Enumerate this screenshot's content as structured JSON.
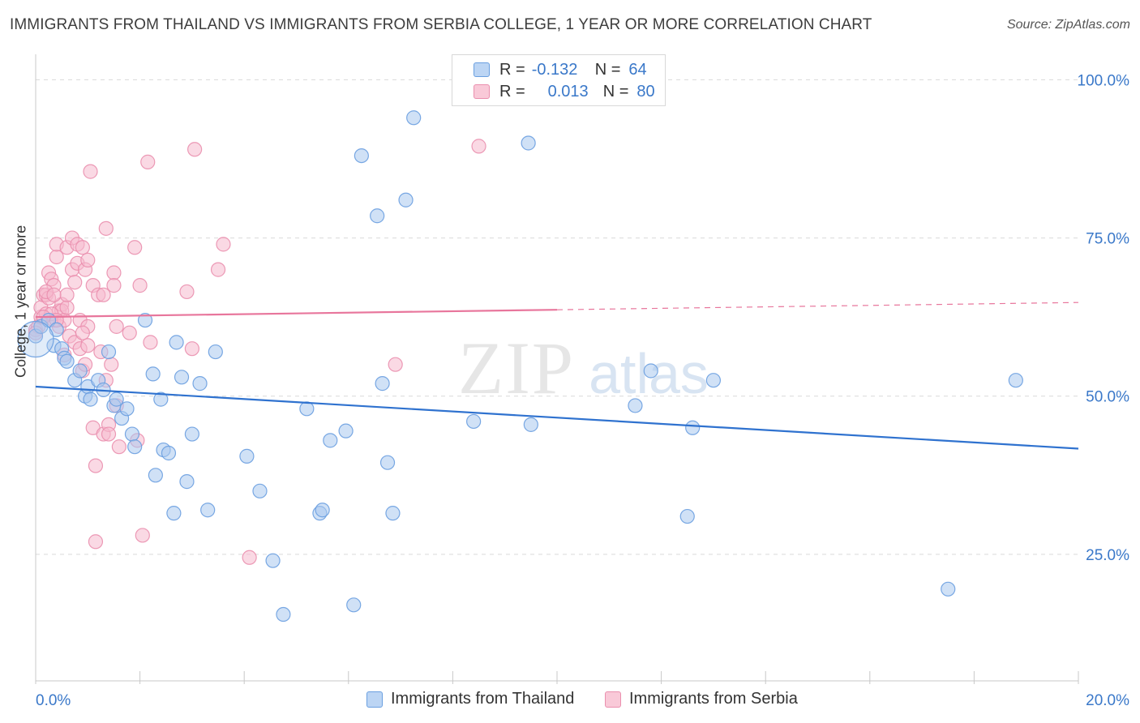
{
  "header": {
    "title": "IMMIGRANTS FROM THAILAND VS IMMIGRANTS FROM SERBIA COLLEGE, 1 YEAR OR MORE CORRELATION CHART",
    "source": "Source: ZipAtlas.com"
  },
  "legend": {
    "thailand": {
      "r_label": "R =",
      "r_value": "-0.132",
      "n_label": "N =",
      "n_value": "64"
    },
    "serbia": {
      "r_label": "R =",
      "r_value": "0.013",
      "n_label": "N =",
      "n_value": "80"
    }
  },
  "watermark": {
    "zip": "ZIP",
    "atlas": "atlas"
  },
  "colors": {
    "thailand_fill": "#a9c8ef",
    "thailand_stroke": "#6a9fe0",
    "thailand_line": "#2f72cf",
    "serbia_fill": "#f6b9cd",
    "serbia_stroke": "#ea8fae",
    "serbia_line": "#e8769c",
    "tick_label": "#3a78c9",
    "grid": "#d9d9d9"
  },
  "chart_data": {
    "type": "scatter",
    "title": "IMMIGRANTS FROM THAILAND VS IMMIGRANTS FROM SERBIA COLLEGE, 1 YEAR OR MORE CORRELATION CHART",
    "xlabel": "",
    "ylabel": "College, 1 year or more",
    "xlim": [
      0,
      20
    ],
    "ylim": [
      5,
      103
    ],
    "x_tick_labels": [
      "0.0%",
      "20.0%"
    ],
    "y_ticks": [
      25,
      50,
      75,
      100
    ],
    "y_tick_labels": [
      "25.0%",
      "50.0%",
      "75.0%",
      "100.0%"
    ],
    "series": [
      {
        "name": "Immigrants from Thailand",
        "trend": {
          "x": [
            0,
            20
          ],
          "y": [
            51.5,
            41.7
          ],
          "solid_until": 20
        },
        "points": [
          [
            0.0,
            59.5
          ],
          [
            0.1,
            61.0
          ],
          [
            0.25,
            62.0
          ],
          [
            0.35,
            58.0
          ],
          [
            0.4,
            60.5
          ],
          [
            0.5,
            57.5
          ],
          [
            0.55,
            56.0
          ],
          [
            0.6,
            55.5
          ],
          [
            0.75,
            52.5
          ],
          [
            0.85,
            54.0
          ],
          [
            0.95,
            50.0
          ],
          [
            1.0,
            51.5
          ],
          [
            1.05,
            49.5
          ],
          [
            1.2,
            52.5
          ],
          [
            1.3,
            51.0
          ],
          [
            1.4,
            57.0
          ],
          [
            1.5,
            48.5
          ],
          [
            1.55,
            49.5
          ],
          [
            1.65,
            46.5
          ],
          [
            1.75,
            48.0
          ],
          [
            1.85,
            44.0
          ],
          [
            1.9,
            42.0
          ],
          [
            2.1,
            62.0
          ],
          [
            2.25,
            53.5
          ],
          [
            2.3,
            37.5
          ],
          [
            2.4,
            49.5
          ],
          [
            2.45,
            41.5
          ],
          [
            2.55,
            41.0
          ],
          [
            2.65,
            31.5
          ],
          [
            2.7,
            58.5
          ],
          [
            2.8,
            53.0
          ],
          [
            2.9,
            36.5
          ],
          [
            3.0,
            44.0
          ],
          [
            3.15,
            52.0
          ],
          [
            3.3,
            32.0
          ],
          [
            3.45,
            57.0
          ],
          [
            4.05,
            40.5
          ],
          [
            4.3,
            35.0
          ],
          [
            4.55,
            24.0
          ],
          [
            4.75,
            15.5
          ],
          [
            5.2,
            48.0
          ],
          [
            5.45,
            31.5
          ],
          [
            5.5,
            32.0
          ],
          [
            5.65,
            43.0
          ],
          [
            5.95,
            44.5
          ],
          [
            6.1,
            17.0
          ],
          [
            6.25,
            88.0
          ],
          [
            6.55,
            78.5
          ],
          [
            6.65,
            52.0
          ],
          [
            6.75,
            39.5
          ],
          [
            6.85,
            31.5
          ],
          [
            7.1,
            81.0
          ],
          [
            7.25,
            94.0
          ],
          [
            8.4,
            46.0
          ],
          [
            9.45,
            90.0
          ],
          [
            9.5,
            45.5
          ],
          [
            11.5,
            48.5
          ],
          [
            11.8,
            54.0
          ],
          [
            12.5,
            31.0
          ],
          [
            12.6,
            45.0
          ],
          [
            13.0,
            52.5
          ],
          [
            17.5,
            19.5
          ],
          [
            18.8,
            52.5
          ],
          [
            0.0,
            59.0
          ]
        ]
      },
      {
        "name": "Immigrants from Serbia",
        "trend": {
          "x": [
            0,
            20
          ],
          "y": [
            62.5,
            64.8
          ],
          "solid_until": 10
        },
        "points": [
          [
            0.0,
            60.5
          ],
          [
            0.05,
            61.0
          ],
          [
            0.1,
            62.5
          ],
          [
            0.1,
            64.0
          ],
          [
            0.15,
            66.0
          ],
          [
            0.2,
            66.0
          ],
          [
            0.2,
            63.0
          ],
          [
            0.25,
            69.5
          ],
          [
            0.25,
            65.5
          ],
          [
            0.3,
            68.5
          ],
          [
            0.35,
            67.5
          ],
          [
            0.35,
            62.0
          ],
          [
            0.4,
            72.0
          ],
          [
            0.4,
            74.0
          ],
          [
            0.45,
            63.5
          ],
          [
            0.45,
            61.0
          ],
          [
            0.5,
            64.5
          ],
          [
            0.5,
            63.5
          ],
          [
            0.55,
            62.0
          ],
          [
            0.6,
            73.5
          ],
          [
            0.6,
            64.0
          ],
          [
            0.65,
            59.5
          ],
          [
            0.7,
            75.0
          ],
          [
            0.7,
            70.0
          ],
          [
            0.75,
            68.0
          ],
          [
            0.75,
            58.5
          ],
          [
            0.8,
            74.0
          ],
          [
            0.8,
            71.0
          ],
          [
            0.85,
            62.0
          ],
          [
            0.85,
            57.5
          ],
          [
            0.9,
            73.5
          ],
          [
            0.9,
            54.0
          ],
          [
            0.95,
            70.0
          ],
          [
            0.95,
            55.0
          ],
          [
            1.0,
            71.5
          ],
          [
            1.0,
            61.0
          ],
          [
            1.05,
            85.5
          ],
          [
            1.1,
            67.5
          ],
          [
            1.1,
            45.0
          ],
          [
            1.15,
            39.0
          ],
          [
            1.15,
            27.0
          ],
          [
            1.2,
            66.0
          ],
          [
            1.25,
            57.0
          ],
          [
            1.3,
            44.0
          ],
          [
            1.3,
            66.0
          ],
          [
            1.35,
            52.5
          ],
          [
            1.35,
            76.5
          ],
          [
            1.4,
            45.5
          ],
          [
            1.4,
            44.0
          ],
          [
            1.45,
            55.0
          ],
          [
            1.5,
            69.5
          ],
          [
            1.5,
            67.5
          ],
          [
            1.55,
            48.5
          ],
          [
            1.55,
            61.0
          ],
          [
            1.6,
            42.0
          ],
          [
            1.8,
            60.0
          ],
          [
            1.9,
            73.5
          ],
          [
            1.95,
            43.0
          ],
          [
            2.0,
            67.5
          ],
          [
            2.05,
            28.0
          ],
          [
            2.15,
            87.0
          ],
          [
            2.2,
            58.5
          ],
          [
            2.9,
            66.5
          ],
          [
            3.0,
            57.5
          ],
          [
            3.05,
            89.0
          ],
          [
            3.5,
            70.0
          ],
          [
            3.6,
            74.0
          ],
          [
            4.1,
            24.5
          ],
          [
            6.9,
            55.0
          ],
          [
            8.5,
            89.5
          ],
          [
            0.0,
            60.0
          ],
          [
            0.3,
            63.0
          ],
          [
            0.6,
            66.0
          ],
          [
            0.9,
            60.0
          ],
          [
            1.0,
            58.0
          ],
          [
            0.2,
            66.5
          ],
          [
            0.4,
            62.0
          ],
          [
            0.15,
            62.5
          ],
          [
            0.35,
            66.0
          ],
          [
            0.55,
            56.5
          ]
        ]
      }
    ],
    "legend": [
      {
        "label": "Immigrants from Thailand",
        "r": -0.132,
        "n": 64
      },
      {
        "label": "Immigrants from Serbia",
        "r": 0.013,
        "n": 80
      }
    ]
  }
}
